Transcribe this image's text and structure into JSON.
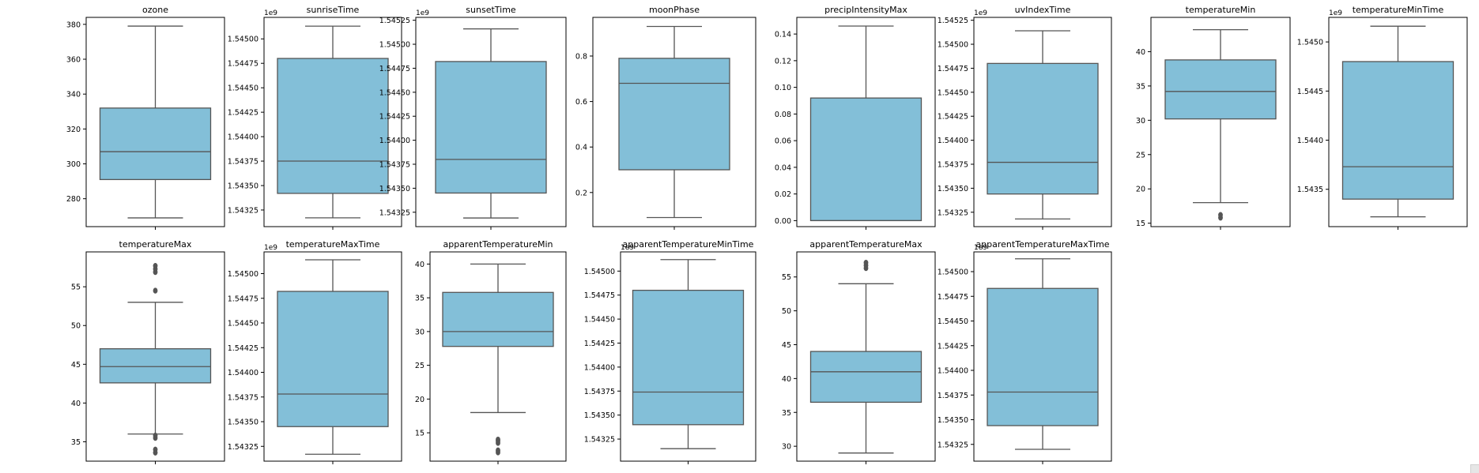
{
  "page": {
    "background": "#ffffff"
  },
  "style": {
    "box_fill": "#83bfd8",
    "box_edge": "#555555",
    "axes_edge": "#000000"
  },
  "chart_data": [
    {
      "type": "box",
      "title": "ozone",
      "offset_label": "",
      "yticks": [
        280,
        300,
        320,
        340,
        360,
        380
      ],
      "ylim": [
        264,
        384
      ],
      "box": {
        "whislo": 269,
        "q1": 291,
        "med": 307,
        "q3": 332,
        "whishi": 379
      },
      "fliers": []
    },
    {
      "type": "box",
      "title": "sunriseTime",
      "offset_label": "1e9",
      "yticks": [
        1.54325,
        1.5435,
        1.54375,
        1.544,
        1.54425,
        1.5445,
        1.54475,
        1.545
      ],
      "ylim": [
        1.54308,
        1.54522
      ],
      "box": {
        "whislo": 1.54317,
        "q1": 1.54342,
        "med": 1.54375,
        "q3": 1.5448,
        "whishi": 1.54513
      },
      "fliers": []
    },
    {
      "type": "box",
      "title": "sunsetTime",
      "offset_label": "1e9",
      "yticks": [
        1.54325,
        1.5435,
        1.54375,
        1.544,
        1.54425,
        1.5445,
        1.54475,
        1.545,
        1.54525
      ],
      "ylim": [
        1.5431,
        1.54528
      ],
      "box": {
        "whislo": 1.54319,
        "q1": 1.54345,
        "med": 1.5438,
        "q3": 1.54482,
        "whishi": 1.54516
      },
      "fliers": []
    },
    {
      "type": "box",
      "title": "moonPhase",
      "offset_label": "",
      "yticks": [
        0.2,
        0.4,
        0.6,
        0.8
      ],
      "ylim": [
        0.05,
        0.97
      ],
      "box": {
        "whislo": 0.09,
        "q1": 0.3,
        "med": 0.68,
        "q3": 0.79,
        "whishi": 0.93
      },
      "fliers": []
    },
    {
      "type": "box",
      "title": "precipIntensityMax",
      "offset_label": "",
      "yticks": [
        0.0,
        0.02,
        0.04,
        0.06,
        0.08,
        0.1,
        0.12,
        0.14
      ],
      "ylim": [
        -0.0045,
        0.1525
      ],
      "box": {
        "whislo": 0.0,
        "q1": 0.0,
        "med": 0.0,
        "q3": 0.092,
        "whishi": 0.146
      },
      "fliers": []
    },
    {
      "type": "box",
      "title": "uvIndexTime",
      "offset_label": "1e9",
      "yticks": [
        1.54325,
        1.5435,
        1.54375,
        1.544,
        1.54425,
        1.5445,
        1.54475,
        1.545,
        1.54525
      ],
      "ylim": [
        1.5431,
        1.54528
      ],
      "box": {
        "whislo": 1.54318,
        "q1": 1.54344,
        "med": 1.54377,
        "q3": 1.5448,
        "whishi": 1.54514
      },
      "fliers": []
    },
    {
      "type": "box",
      "title": "temperatureMin",
      "offset_label": "",
      "yticks": [
        15,
        20,
        25,
        30,
        35,
        40
      ],
      "ylim": [
        14.5,
        45
      ],
      "box": {
        "whislo": 18,
        "q1": 30.2,
        "med": 34.2,
        "q3": 38.8,
        "whishi": 43.2
      },
      "fliers": [
        15.8,
        16.2
      ]
    },
    {
      "type": "box",
      "title": "temperatureMinTime",
      "offset_label": "1e9",
      "yticks": [
        1.5435,
        1.544,
        1.5445,
        1.545
      ],
      "ylim": [
        1.54312,
        1.54525
      ],
      "box": {
        "whislo": 1.54322,
        "q1": 1.5434,
        "med": 1.54373,
        "q3": 1.5448,
        "whishi": 1.54516
      },
      "fliers": []
    },
    {
      "type": "box",
      "title": "temperatureMax",
      "offset_label": "",
      "yticks": [
        35,
        40,
        45,
        50,
        55
      ],
      "ylim": [
        32.5,
        59.5
      ],
      "box": {
        "whislo": 36,
        "q1": 42.6,
        "med": 44.7,
        "q3": 47,
        "whishi": 53
      },
      "fliers": [
        33.6,
        34.0,
        35.5,
        35.8,
        54.5,
        56.9,
        57.3,
        57.7
      ]
    },
    {
      "type": "box",
      "title": "temperatureMaxTime",
      "offset_label": "1e9",
      "yticks": [
        1.54325,
        1.5435,
        1.54375,
        1.544,
        1.54425,
        1.5445,
        1.54475,
        1.545
      ],
      "ylim": [
        1.5431,
        1.54522
      ],
      "box": {
        "whislo": 1.54317,
        "q1": 1.54345,
        "med": 1.54378,
        "q3": 1.54482,
        "whishi": 1.54514
      },
      "fliers": []
    },
    {
      "type": "box",
      "title": "apparentTemperatureMin",
      "offset_label": "",
      "yticks": [
        15,
        20,
        25,
        30,
        35,
        40
      ],
      "ylim": [
        10.8,
        41.8
      ],
      "box": {
        "whislo": 18,
        "q1": 27.8,
        "med": 30,
        "q3": 35.8,
        "whishi": 40
      },
      "fliers": [
        12.1,
        12.4,
        13.5,
        13.8,
        14.0
      ]
    },
    {
      "type": "box",
      "title": "apparentTemperatureMinTime",
      "offset_label": "1e9",
      "yticks": [
        1.54325,
        1.5435,
        1.54375,
        1.544,
        1.54425,
        1.5445,
        1.54475,
        1.545
      ],
      "ylim": [
        1.54302,
        1.5452
      ],
      "box": {
        "whislo": 1.54315,
        "q1": 1.5434,
        "med": 1.54374,
        "q3": 1.5448,
        "whishi": 1.54512
      },
      "fliers": []
    },
    {
      "type": "box",
      "title": "apparentTemperatureMax",
      "offset_label": "",
      "yticks": [
        30,
        35,
        40,
        45,
        50,
        55
      ],
      "ylim": [
        27.8,
        58.7
      ],
      "box": {
        "whislo": 29,
        "q1": 36.5,
        "med": 41,
        "q3": 44,
        "whishi": 54
      },
      "fliers": [
        56.3,
        56.7,
        57.1
      ]
    },
    {
      "type": "box",
      "title": "apparentTemperatureMaxTime",
      "offset_label": "1e9",
      "yticks": [
        1.54325,
        1.5435,
        1.54375,
        1.544,
        1.54425,
        1.5445,
        1.54475,
        1.545
      ],
      "ylim": [
        1.54308,
        1.5452
      ],
      "box": {
        "whislo": 1.5432,
        "q1": 1.54344,
        "med": 1.54378,
        "q3": 1.54483,
        "whishi": 1.54513
      },
      "fliers": []
    }
  ]
}
